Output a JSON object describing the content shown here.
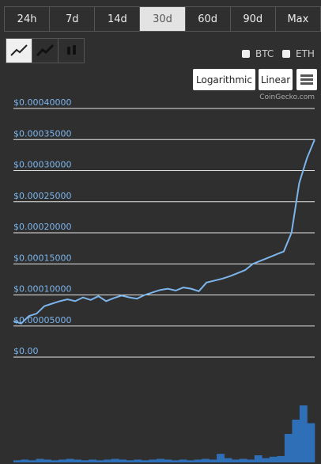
{
  "ui": {
    "ranges": [
      "24h",
      "7d",
      "14d",
      "30d",
      "60d",
      "90d",
      "Max"
    ],
    "selected_range": 3,
    "compare": [
      "BTC",
      "ETH"
    ],
    "scales": [
      "Logarithmic",
      "Linear"
    ],
    "credit": "CoinGecko.com"
  },
  "chart_data": {
    "type": "line",
    "color": "#7cb5ec",
    "volume_color": "#2f6fb8",
    "values": [
      5.8e-05,
      5.4e-05,
      6.6e-05,
      7e-05,
      8.2e-05,
      8.6e-05,
      9e-05,
      9.3e-05,
      9e-05,
      9.6e-05,
      9.2e-05,
      9.8e-05,
      9e-05,
      9.5e-05,
      9.9e-05,
      9.6e-05,
      9.4e-05,
      0.0001,
      0.000104,
      0.000108,
      0.00011,
      0.000107,
      0.000112,
      0.00011,
      0.000106,
      0.00012,
      0.000123,
      0.000126,
      0.00013,
      0.000135,
      0.00014,
      0.00015,
      0.000155,
      0.00016,
      0.000165,
      0.00017,
      0.0002,
      0.00028,
      0.00032,
      0.00035
    ],
    "volume": [
      3,
      4,
      3,
      5,
      4,
      3,
      4,
      5,
      4,
      3,
      4,
      3,
      4,
      5,
      4,
      3,
      4,
      3,
      4,
      5,
      4,
      3,
      4,
      3,
      4,
      5,
      4,
      12,
      6,
      4,
      5,
      4,
      10,
      6,
      8,
      9,
      40,
      60,
      80,
      55
    ],
    "ylim": [
      0,
      0.0004
    ],
    "yticks": [
      {
        "value": 0,
        "label": "$0.00"
      },
      {
        "value": 5e-05,
        "label": "$0.00005000"
      },
      {
        "value": 0.0001,
        "label": "$0.00010000"
      },
      {
        "value": 0.00015,
        "label": "$0.00015000"
      },
      {
        "value": 0.0002,
        "label": "$0.00020000"
      },
      {
        "value": 0.00025,
        "label": "$0.00025000"
      },
      {
        "value": 0.0003,
        "label": "$0.00030000"
      },
      {
        "value": 0.00035,
        "label": "$0.00035000"
      },
      {
        "value": 0.0004,
        "label": "$0.00040000"
      }
    ],
    "grid": true
  }
}
